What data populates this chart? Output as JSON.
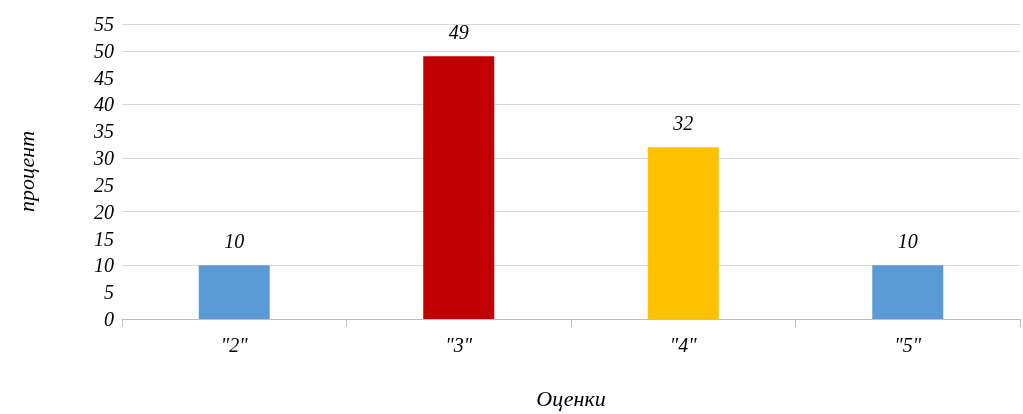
{
  "chart_data": {
    "type": "bar",
    "xlabel": "Оценки",
    "ylabel": "процент",
    "categories": [
      "\"2\"",
      "\"3\"",
      "\"4\"",
      "\"5\""
    ],
    "values": [
      10,
      49,
      32,
      10
    ],
    "colors": [
      "#5b9bd5",
      "#c00000",
      "#ffc000",
      "#5b9bd5"
    ],
    "ylim": [
      0,
      55
    ],
    "yticks": [
      0,
      5,
      10,
      15,
      20,
      25,
      30,
      35,
      40,
      45,
      50,
      55
    ],
    "grid": "y",
    "data_labels": true
  }
}
